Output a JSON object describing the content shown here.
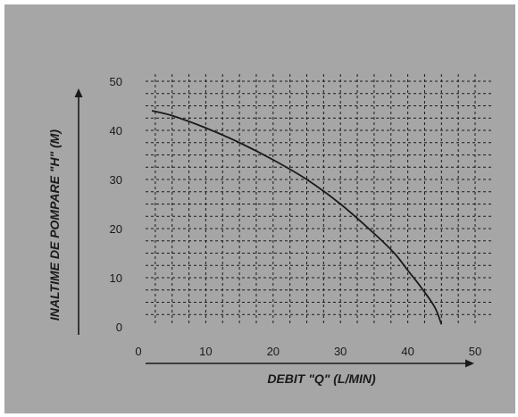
{
  "chart_data": {
    "type": "line",
    "title": "",
    "xlabel": "DEBIT \"Q\" (L/MIN)",
    "ylabel": "INALTIME DE POMPARE \"H\" (M)",
    "xlim": [
      0,
      50
    ],
    "ylim": [
      0,
      50
    ],
    "x_ticks": [
      0,
      10,
      20,
      30,
      40,
      50
    ],
    "y_ticks": [
      0,
      10,
      20,
      30,
      40,
      50
    ],
    "grid": true,
    "series": [
      {
        "x": [
          2,
          5,
          10,
          15,
          20,
          25,
          30,
          35,
          38,
          40,
          42,
          44,
          45
        ],
        "y": [
          44,
          43,
          40.5,
          37.5,
          34,
          30,
          25,
          19,
          15,
          11.5,
          8,
          4,
          0.5
        ]
      }
    ],
    "colors": {
      "panel": "#a6a6a6",
      "ink": "#1a1a1a"
    }
  }
}
